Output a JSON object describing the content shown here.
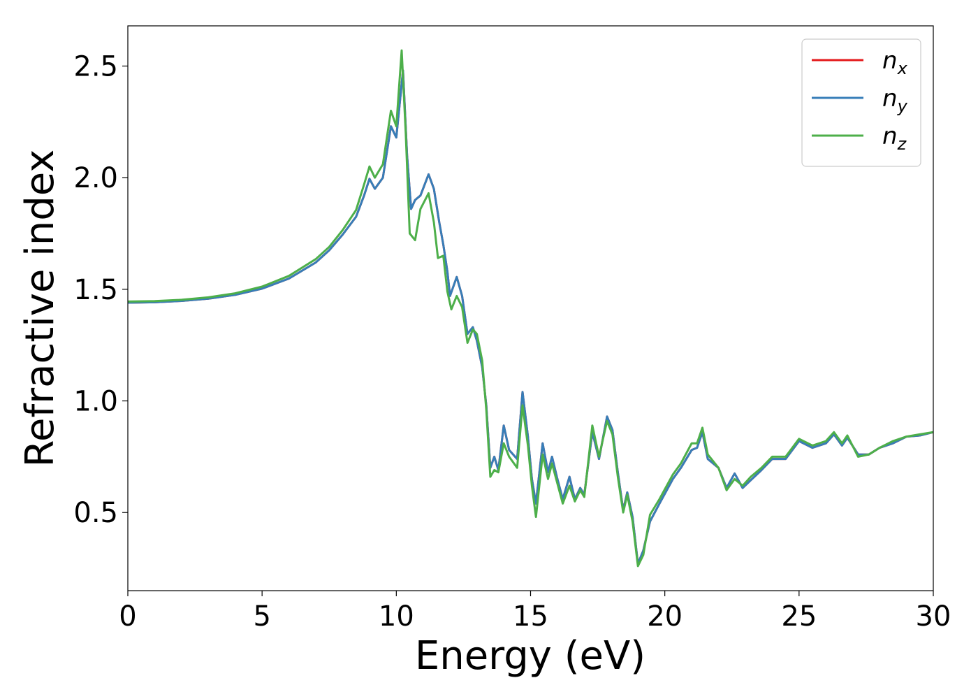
{
  "chart_data": {
    "type": "line",
    "xlabel": "Energy (eV)",
    "ylabel": "Refractive index",
    "xlim": [
      0,
      30
    ],
    "ylim": [
      0.15,
      2.68
    ],
    "xticks": [
      "0",
      "5",
      "10",
      "15",
      "20",
      "25",
      "30"
    ],
    "yticks": [
      "0.5",
      "1.0",
      "1.5",
      "2.0",
      "2.5"
    ],
    "grid": false,
    "legend_position": "top-right",
    "series": [
      {
        "name": "n",
        "subscript": "x",
        "color": "#e41a1c",
        "points": [
          [
            0,
            1.44
          ],
          [
            1,
            1.442
          ],
          [
            2,
            1.448
          ],
          [
            3,
            1.458
          ],
          [
            4,
            1.475
          ],
          [
            5,
            1.503
          ],
          [
            6,
            1.548
          ],
          [
            7,
            1.62
          ],
          [
            7.5,
            1.675
          ],
          [
            8,
            1.745
          ],
          [
            8.5,
            1.825
          ],
          [
            8.8,
            1.92
          ],
          [
            9.0,
            1.995
          ],
          [
            9.2,
            1.95
          ],
          [
            9.5,
            2.0
          ],
          [
            9.8,
            2.23
          ],
          [
            10.0,
            2.18
          ],
          [
            10.25,
            2.48
          ],
          [
            10.4,
            2.1
          ],
          [
            10.55,
            1.86
          ],
          [
            10.7,
            1.9
          ],
          [
            10.9,
            1.92
          ],
          [
            11.2,
            2.015
          ],
          [
            11.4,
            1.95
          ],
          [
            11.6,
            1.8
          ],
          [
            11.75,
            1.7
          ],
          [
            11.9,
            1.58
          ],
          [
            12.0,
            1.47
          ],
          [
            12.25,
            1.555
          ],
          [
            12.45,
            1.47
          ],
          [
            12.65,
            1.3
          ],
          [
            12.85,
            1.33
          ],
          [
            13.0,
            1.27
          ],
          [
            13.2,
            1.15
          ],
          [
            13.35,
            0.98
          ],
          [
            13.5,
            0.7
          ],
          [
            13.65,
            0.75
          ],
          [
            13.8,
            0.69
          ],
          [
            14.0,
            0.89
          ],
          [
            14.2,
            0.78
          ],
          [
            14.5,
            0.74
          ],
          [
            14.7,
            1.04
          ],
          [
            14.9,
            0.84
          ],
          [
            15.05,
            0.65
          ],
          [
            15.2,
            0.54
          ],
          [
            15.45,
            0.81
          ],
          [
            15.65,
            0.68
          ],
          [
            15.8,
            0.75
          ],
          [
            16.0,
            0.65
          ],
          [
            16.2,
            0.56
          ],
          [
            16.45,
            0.66
          ],
          [
            16.65,
            0.56
          ],
          [
            16.85,
            0.61
          ],
          [
            17.0,
            0.58
          ],
          [
            17.3,
            0.86
          ],
          [
            17.55,
            0.74
          ],
          [
            17.85,
            0.93
          ],
          [
            18.05,
            0.87
          ],
          [
            18.25,
            0.68
          ],
          [
            18.45,
            0.51
          ],
          [
            18.6,
            0.59
          ],
          [
            18.8,
            0.48
          ],
          [
            19.0,
            0.27
          ],
          [
            19.2,
            0.33
          ],
          [
            19.45,
            0.46
          ],
          [
            19.8,
            0.54
          ],
          [
            20.3,
            0.65
          ],
          [
            20.6,
            0.7
          ],
          [
            21.0,
            0.78
          ],
          [
            21.2,
            0.79
          ],
          [
            21.4,
            0.86
          ],
          [
            21.6,
            0.74
          ],
          [
            22.0,
            0.7
          ],
          [
            22.3,
            0.61
          ],
          [
            22.6,
            0.675
          ],
          [
            22.9,
            0.61
          ],
          [
            23.2,
            0.645
          ],
          [
            23.6,
            0.69
          ],
          [
            24.0,
            0.74
          ],
          [
            24.5,
            0.74
          ],
          [
            25.0,
            0.82
          ],
          [
            25.5,
            0.79
          ],
          [
            26.0,
            0.81
          ],
          [
            26.3,
            0.85
          ],
          [
            26.6,
            0.8
          ],
          [
            26.8,
            0.835
          ],
          [
            27.2,
            0.76
          ],
          [
            27.6,
            0.76
          ],
          [
            28.0,
            0.79
          ],
          [
            28.5,
            0.81
          ],
          [
            29.0,
            0.84
          ],
          [
            29.5,
            0.845
          ],
          [
            30.0,
            0.86
          ]
        ]
      },
      {
        "name": "n",
        "subscript": "y",
        "color": "#377eb8",
        "points": [
          [
            0,
            1.44
          ],
          [
            1,
            1.442
          ],
          [
            2,
            1.448
          ],
          [
            3,
            1.458
          ],
          [
            4,
            1.475
          ],
          [
            5,
            1.503
          ],
          [
            6,
            1.548
          ],
          [
            7,
            1.62
          ],
          [
            7.5,
            1.675
          ],
          [
            8,
            1.745
          ],
          [
            8.5,
            1.825
          ],
          [
            8.8,
            1.92
          ],
          [
            9.0,
            1.995
          ],
          [
            9.2,
            1.95
          ],
          [
            9.5,
            2.0
          ],
          [
            9.8,
            2.23
          ],
          [
            10.0,
            2.18
          ],
          [
            10.25,
            2.48
          ],
          [
            10.4,
            2.1
          ],
          [
            10.55,
            1.86
          ],
          [
            10.7,
            1.9
          ],
          [
            10.9,
            1.92
          ],
          [
            11.2,
            2.015
          ],
          [
            11.4,
            1.95
          ],
          [
            11.6,
            1.8
          ],
          [
            11.75,
            1.7
          ],
          [
            11.9,
            1.58
          ],
          [
            12.0,
            1.47
          ],
          [
            12.25,
            1.555
          ],
          [
            12.45,
            1.47
          ],
          [
            12.65,
            1.3
          ],
          [
            12.85,
            1.33
          ],
          [
            13.0,
            1.27
          ],
          [
            13.2,
            1.15
          ],
          [
            13.35,
            0.98
          ],
          [
            13.5,
            0.7
          ],
          [
            13.65,
            0.75
          ],
          [
            13.8,
            0.69
          ],
          [
            14.0,
            0.89
          ],
          [
            14.2,
            0.78
          ],
          [
            14.5,
            0.74
          ],
          [
            14.7,
            1.04
          ],
          [
            14.9,
            0.84
          ],
          [
            15.05,
            0.65
          ],
          [
            15.2,
            0.54
          ],
          [
            15.45,
            0.81
          ],
          [
            15.65,
            0.68
          ],
          [
            15.8,
            0.75
          ],
          [
            16.0,
            0.65
          ],
          [
            16.2,
            0.56
          ],
          [
            16.45,
            0.66
          ],
          [
            16.65,
            0.56
          ],
          [
            16.85,
            0.61
          ],
          [
            17.0,
            0.58
          ],
          [
            17.3,
            0.86
          ],
          [
            17.55,
            0.74
          ],
          [
            17.85,
            0.93
          ],
          [
            18.05,
            0.87
          ],
          [
            18.25,
            0.68
          ],
          [
            18.45,
            0.51
          ],
          [
            18.6,
            0.59
          ],
          [
            18.8,
            0.48
          ],
          [
            19.0,
            0.27
          ],
          [
            19.2,
            0.33
          ],
          [
            19.45,
            0.46
          ],
          [
            19.8,
            0.54
          ],
          [
            20.3,
            0.65
          ],
          [
            20.6,
            0.7
          ],
          [
            21.0,
            0.78
          ],
          [
            21.2,
            0.79
          ],
          [
            21.4,
            0.86
          ],
          [
            21.6,
            0.74
          ],
          [
            22.0,
            0.7
          ],
          [
            22.3,
            0.61
          ],
          [
            22.6,
            0.675
          ],
          [
            22.9,
            0.61
          ],
          [
            23.2,
            0.645
          ],
          [
            23.6,
            0.69
          ],
          [
            24.0,
            0.74
          ],
          [
            24.5,
            0.74
          ],
          [
            25.0,
            0.82
          ],
          [
            25.5,
            0.79
          ],
          [
            26.0,
            0.81
          ],
          [
            26.3,
            0.85
          ],
          [
            26.6,
            0.8
          ],
          [
            26.8,
            0.835
          ],
          [
            27.2,
            0.76
          ],
          [
            27.6,
            0.76
          ],
          [
            28.0,
            0.79
          ],
          [
            28.5,
            0.81
          ],
          [
            29.0,
            0.84
          ],
          [
            29.5,
            0.845
          ],
          [
            30.0,
            0.86
          ]
        ]
      },
      {
        "name": "n",
        "subscript": "z",
        "color": "#4daf4a",
        "points": [
          [
            0,
            1.445
          ],
          [
            1,
            1.447
          ],
          [
            2,
            1.453
          ],
          [
            3,
            1.464
          ],
          [
            4,
            1.482
          ],
          [
            5,
            1.512
          ],
          [
            6,
            1.56
          ],
          [
            7,
            1.635
          ],
          [
            7.5,
            1.69
          ],
          [
            8,
            1.765
          ],
          [
            8.5,
            1.855
          ],
          [
            8.8,
            1.97
          ],
          [
            9.0,
            2.05
          ],
          [
            9.2,
            2.0
          ],
          [
            9.5,
            2.06
          ],
          [
            9.8,
            2.3
          ],
          [
            10.0,
            2.23
          ],
          [
            10.2,
            2.57
          ],
          [
            10.35,
            2.2
          ],
          [
            10.5,
            1.75
          ],
          [
            10.7,
            1.72
          ],
          [
            10.9,
            1.86
          ],
          [
            11.2,
            1.93
          ],
          [
            11.4,
            1.8
          ],
          [
            11.55,
            1.64
          ],
          [
            11.75,
            1.65
          ],
          [
            11.9,
            1.49
          ],
          [
            12.05,
            1.41
          ],
          [
            12.25,
            1.47
          ],
          [
            12.45,
            1.42
          ],
          [
            12.65,
            1.26
          ],
          [
            12.85,
            1.32
          ],
          [
            13.0,
            1.3
          ],
          [
            13.2,
            1.18
          ],
          [
            13.35,
            0.96
          ],
          [
            13.5,
            0.66
          ],
          [
            13.65,
            0.69
          ],
          [
            13.8,
            0.68
          ],
          [
            14.0,
            0.81
          ],
          [
            14.2,
            0.75
          ],
          [
            14.5,
            0.7
          ],
          [
            14.7,
            0.98
          ],
          [
            14.9,
            0.8
          ],
          [
            15.05,
            0.62
          ],
          [
            15.2,
            0.48
          ],
          [
            15.45,
            0.76
          ],
          [
            15.65,
            0.65
          ],
          [
            15.8,
            0.72
          ],
          [
            16.0,
            0.63
          ],
          [
            16.2,
            0.54
          ],
          [
            16.45,
            0.62
          ],
          [
            16.65,
            0.55
          ],
          [
            16.85,
            0.6
          ],
          [
            17.0,
            0.57
          ],
          [
            17.3,
            0.89
          ],
          [
            17.55,
            0.75
          ],
          [
            17.85,
            0.91
          ],
          [
            18.05,
            0.85
          ],
          [
            18.25,
            0.66
          ],
          [
            18.45,
            0.5
          ],
          [
            18.6,
            0.58
          ],
          [
            18.8,
            0.46
          ],
          [
            19.0,
            0.26
          ],
          [
            19.2,
            0.31
          ],
          [
            19.45,
            0.49
          ],
          [
            19.8,
            0.56
          ],
          [
            20.3,
            0.67
          ],
          [
            20.6,
            0.72
          ],
          [
            21.0,
            0.81
          ],
          [
            21.2,
            0.81
          ],
          [
            21.4,
            0.88
          ],
          [
            21.6,
            0.76
          ],
          [
            22.0,
            0.7
          ],
          [
            22.3,
            0.6
          ],
          [
            22.6,
            0.65
          ],
          [
            22.9,
            0.62
          ],
          [
            23.2,
            0.66
          ],
          [
            23.6,
            0.7
          ],
          [
            24.0,
            0.75
          ],
          [
            24.5,
            0.75
          ],
          [
            25.0,
            0.83
          ],
          [
            25.5,
            0.8
          ],
          [
            26.0,
            0.82
          ],
          [
            26.3,
            0.86
          ],
          [
            26.6,
            0.81
          ],
          [
            26.8,
            0.845
          ],
          [
            27.2,
            0.75
          ],
          [
            27.6,
            0.76
          ],
          [
            28.0,
            0.79
          ],
          [
            28.5,
            0.82
          ],
          [
            29.0,
            0.84
          ],
          [
            29.5,
            0.85
          ],
          [
            30.0,
            0.86
          ]
        ]
      }
    ]
  }
}
